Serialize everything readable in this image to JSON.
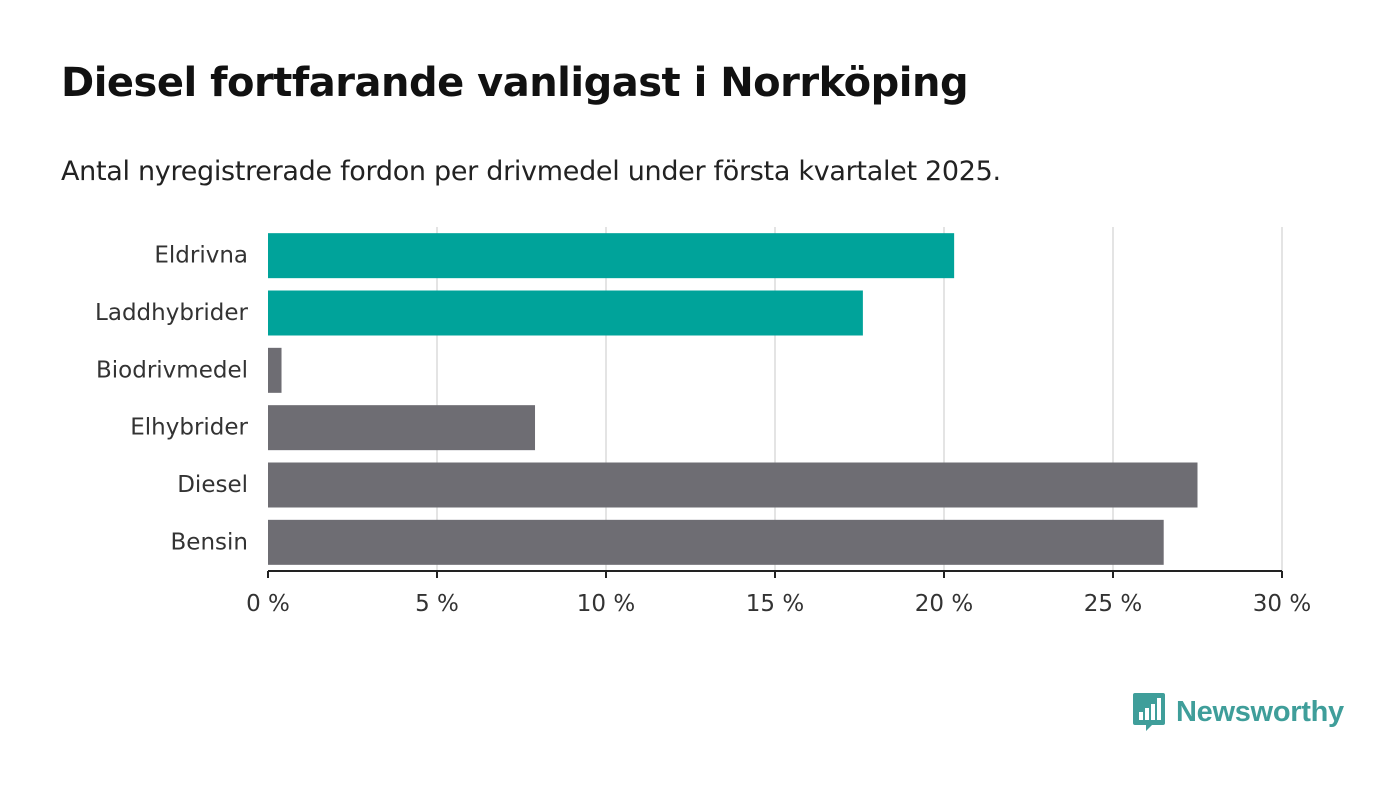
{
  "chart_data": {
    "type": "bar",
    "orientation": "horizontal",
    "title": "Diesel fortfarande vanligast i Norrköping",
    "subtitle": "Antal nyregistrerade fordon per drivmedel under första kvartalet 2025.",
    "categories": [
      "Eldrivna",
      "Laddhybrider",
      "Biodrivmedel",
      "Elhybrider",
      "Diesel",
      "Bensin"
    ],
    "values": [
      20.3,
      17.6,
      0.4,
      7.9,
      27.5,
      26.5
    ],
    "bar_colors": [
      "#00a39a",
      "#00a39a",
      "#6e6d73",
      "#6e6d73",
      "#6e6d73",
      "#6e6d73"
    ],
    "xlim": [
      0,
      30
    ],
    "xticks": [
      0,
      5,
      10,
      15,
      20,
      25,
      30
    ],
    "xtick_labels": [
      "0 %",
      "5 %",
      "10 %",
      "15 %",
      "20 %",
      "25 %",
      "30 %"
    ],
    "xlabel": "",
    "ylabel": "",
    "grid": "vertical"
  },
  "brand": {
    "name": "Newsworthy",
    "icon": "newsworthy-logo-icon",
    "color": "#3f9e9a"
  }
}
